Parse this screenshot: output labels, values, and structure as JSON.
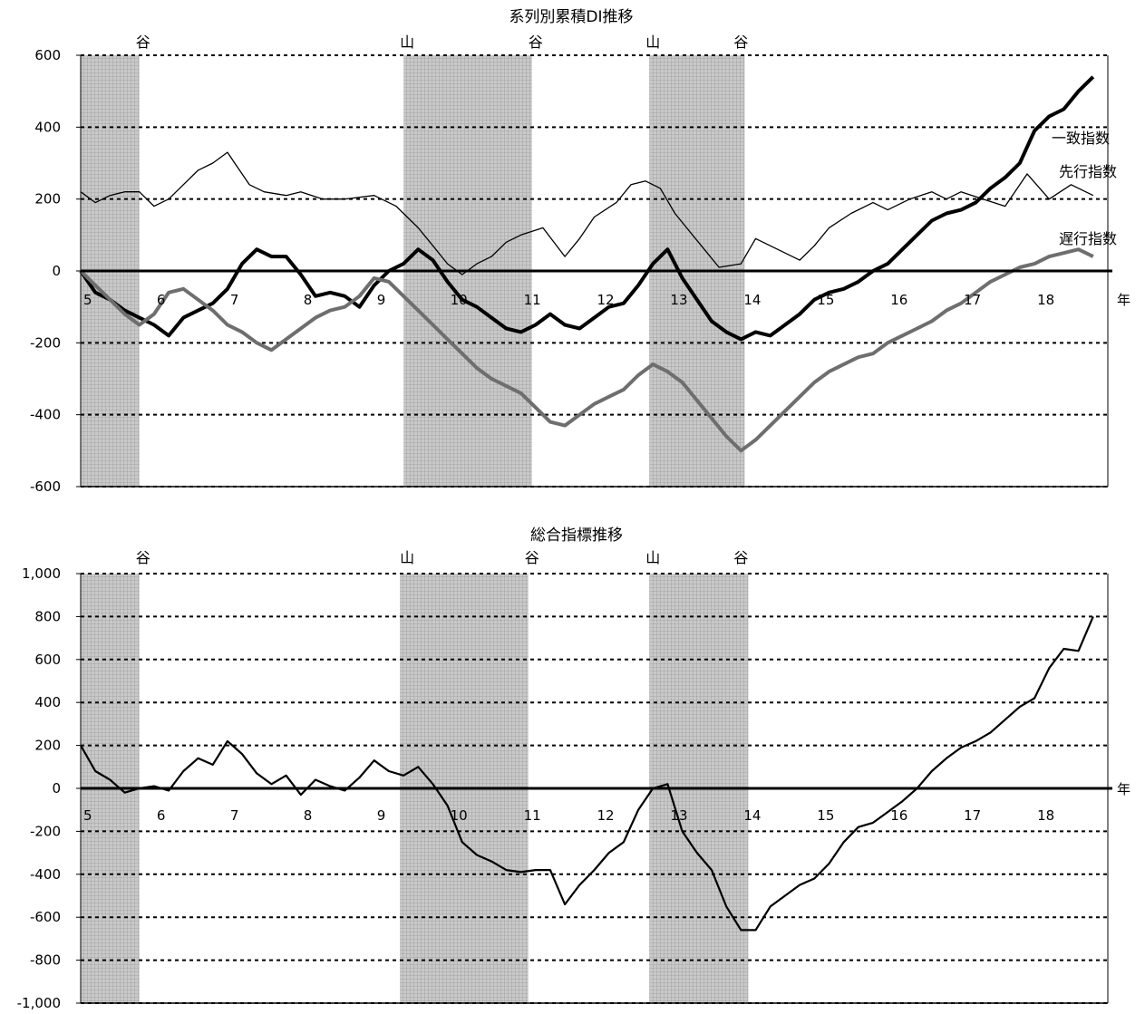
{
  "chart_data": [
    {
      "type": "line",
      "title": "系列別累積DI推移",
      "xlabel": "年",
      "ylabel": "",
      "xlim": [
        5,
        19
      ],
      "ylim": [
        -600,
        600
      ],
      "y_ticks": [
        600,
        400,
        200,
        0,
        -200,
        -400,
        -600
      ],
      "y_tick_labels": [
        "600",
        "400",
        "200",
        "0",
        "-200",
        "-400",
        "-600"
      ],
      "x_tick_labels": [
        {
          "x": 5,
          "label": "5"
        },
        {
          "x": 6,
          "label": "6"
        },
        {
          "x": 7,
          "label": "7"
        },
        {
          "x": 8,
          "label": "8"
        },
        {
          "x": 9,
          "label": "9"
        },
        {
          "x": 10,
          "label": "10"
        },
        {
          "x": 11,
          "label": "11"
        },
        {
          "x": 12,
          "label": "12"
        },
        {
          "x": 13,
          "label": "13"
        },
        {
          "x": 14,
          "label": "14"
        },
        {
          "x": 15,
          "label": "15"
        },
        {
          "x": 16,
          "label": "16"
        },
        {
          "x": 17,
          "label": "17"
        },
        {
          "x": 18,
          "label": "18"
        }
      ],
      "grid": "dashed horizontal",
      "recession_bands": [
        [
          5.0,
          5.8
        ],
        [
          9.4,
          11.15
        ],
        [
          12.75,
          14.05
        ]
      ],
      "turning_points": [
        {
          "x": 5.85,
          "label": "谷"
        },
        {
          "x": 9.45,
          "label": "山"
        },
        {
          "x": 11.2,
          "label": "谷"
        },
        {
          "x": 12.8,
          "label": "山"
        },
        {
          "x": 14.0,
          "label": "谷"
        }
      ],
      "series": [
        {
          "name": "先行指数",
          "style": "thin",
          "color": "#000000",
          "x": [
            5.0,
            5.2,
            5.4,
            5.6,
            5.8,
            6.0,
            6.2,
            6.4,
            6.6,
            6.8,
            7.0,
            7.1,
            7.3,
            7.5,
            7.8,
            8.0,
            8.3,
            8.6,
            9.0,
            9.3,
            9.6,
            9.8,
            10.0,
            10.2,
            10.4,
            10.6,
            10.8,
            11.0,
            11.3,
            11.6,
            11.8,
            12.0,
            12.3,
            12.5,
            12.7,
            12.9,
            13.1,
            13.3,
            13.5,
            13.7,
            14.0,
            14.2,
            14.5,
            14.8,
            15.0,
            15.2,
            15.5,
            15.8,
            16.0,
            16.3,
            16.6,
            16.8,
            17.0,
            17.3,
            17.6,
            17.9,
            18.2,
            18.5,
            18.8
          ],
          "y": [
            220,
            190,
            210,
            220,
            220,
            180,
            200,
            240,
            280,
            300,
            330,
            300,
            240,
            220,
            210,
            220,
            200,
            200,
            210,
            180,
            120,
            70,
            20,
            -10,
            20,
            40,
            80,
            100,
            120,
            40,
            90,
            150,
            190,
            240,
            250,
            230,
            160,
            110,
            60,
            10,
            20,
            90,
            60,
            30,
            70,
            120,
            160,
            190,
            170,
            200,
            220,
            200,
            220,
            200,
            180,
            270,
            200,
            240,
            210
          ]
        },
        {
          "name": "一致指数",
          "style": "thick",
          "color": "#000000",
          "x": [
            5.0,
            5.2,
            5.4,
            5.6,
            5.8,
            6.0,
            6.2,
            6.4,
            6.6,
            6.8,
            7.0,
            7.2,
            7.4,
            7.6,
            7.8,
            8.0,
            8.2,
            8.4,
            8.6,
            8.8,
            9.0,
            9.2,
            9.4,
            9.6,
            9.8,
            10.0,
            10.2,
            10.4,
            10.6,
            10.8,
            11.0,
            11.2,
            11.4,
            11.6,
            11.8,
            12.0,
            12.2,
            12.4,
            12.6,
            12.8,
            13.0,
            13.2,
            13.4,
            13.6,
            13.8,
            14.0,
            14.2,
            14.4,
            14.6,
            14.8,
            15.0,
            15.2,
            15.4,
            15.6,
            15.8,
            16.0,
            16.2,
            16.4,
            16.6,
            16.8,
            17.0,
            17.2,
            17.4,
            17.6,
            17.8,
            18.0,
            18.2,
            18.4,
            18.6,
            18.8
          ],
          "y": [
            0,
            -60,
            -80,
            -110,
            -130,
            -150,
            -180,
            -130,
            -110,
            -90,
            -50,
            20,
            60,
            40,
            40,
            -10,
            -70,
            -60,
            -70,
            -100,
            -40,
            0,
            20,
            60,
            30,
            -30,
            -80,
            -100,
            -130,
            -160,
            -170,
            -150,
            -120,
            -150,
            -160,
            -130,
            -100,
            -90,
            -40,
            20,
            60,
            -20,
            -80,
            -140,
            -170,
            -190,
            -170,
            -180,
            -150,
            -120,
            -80,
            -60,
            -50,
            -30,
            0,
            20,
            60,
            100,
            140,
            160,
            170,
            190,
            230,
            260,
            300,
            390,
            430,
            450,
            500,
            540
          ]
        },
        {
          "name": "遅行指数",
          "style": "gray-thick",
          "color": "#6e6e6e",
          "x": [
            5.0,
            5.2,
            5.4,
            5.6,
            5.8,
            6.0,
            6.2,
            6.4,
            6.6,
            6.8,
            7.0,
            7.2,
            7.4,
            7.6,
            7.8,
            8.0,
            8.2,
            8.4,
            8.6,
            8.8,
            9.0,
            9.2,
            9.4,
            9.6,
            9.8,
            10.0,
            10.2,
            10.4,
            10.6,
            10.8,
            11.0,
            11.2,
            11.4,
            11.6,
            11.8,
            12.0,
            12.2,
            12.4,
            12.6,
            12.8,
            13.0,
            13.2,
            13.4,
            13.6,
            13.8,
            14.0,
            14.2,
            14.4,
            14.6,
            14.8,
            15.0,
            15.2,
            15.4,
            15.6,
            15.8,
            16.0,
            16.2,
            16.4,
            16.6,
            16.8,
            17.0,
            17.2,
            17.4,
            17.6,
            17.8,
            18.0,
            18.2,
            18.4,
            18.6,
            18.8
          ],
          "y": [
            0,
            -40,
            -80,
            -120,
            -150,
            -120,
            -60,
            -50,
            -80,
            -110,
            -150,
            -170,
            -200,
            -220,
            -190,
            -160,
            -130,
            -110,
            -100,
            -70,
            -20,
            -30,
            -70,
            -110,
            -150,
            -190,
            -230,
            -270,
            -300,
            -320,
            -340,
            -380,
            -420,
            -430,
            -400,
            -370,
            -350,
            -330,
            -290,
            -260,
            -280,
            -310,
            -360,
            -410,
            -460,
            -500,
            -470,
            -430,
            -390,
            -350,
            -310,
            -280,
            -260,
            -240,
            -230,
            -200,
            -180,
            -160,
            -140,
            -110,
            -90,
            -60,
            -30,
            -10,
            10,
            20,
            40,
            50,
            60,
            40
          ]
        }
      ],
      "series_labels": [
        {
          "name": "一致指数"
        },
        {
          "name": "先行指数"
        },
        {
          "name": "遅行指数"
        }
      ]
    },
    {
      "type": "line",
      "title": "総合指標推移",
      "xlabel": "年",
      "ylabel": "",
      "xlim": [
        5,
        19
      ],
      "ylim": [
        -1000,
        1000
      ],
      "y_ticks": [
        1000,
        800,
        600,
        400,
        200,
        0,
        -200,
        -400,
        -600,
        -800,
        -1000
      ],
      "y_tick_labels": [
        "1,000",
        "800",
        "600",
        "400",
        "200",
        "0",
        "-200",
        "-400",
        "-600",
        "-800",
        "-1,000"
      ],
      "x_tick_labels": [
        {
          "x": 5,
          "label": "5"
        },
        {
          "x": 6,
          "label": "6"
        },
        {
          "x": 7,
          "label": "7"
        },
        {
          "x": 8,
          "label": "8"
        },
        {
          "x": 9,
          "label": "9"
        },
        {
          "x": 10,
          "label": "10"
        },
        {
          "x": 11,
          "label": "11"
        },
        {
          "x": 12,
          "label": "12"
        },
        {
          "x": 13,
          "label": "13"
        },
        {
          "x": 14,
          "label": "14"
        },
        {
          "x": 15,
          "label": "15"
        },
        {
          "x": 16,
          "label": "16"
        },
        {
          "x": 17,
          "label": "17"
        },
        {
          "x": 18,
          "label": "18"
        }
      ],
      "grid": "dashed horizontal",
      "recession_bands": [
        [
          5.0,
          5.8
        ],
        [
          9.35,
          11.1
        ],
        [
          12.75,
          14.1
        ]
      ],
      "turning_points": [
        {
          "x": 5.85,
          "label": "谷"
        },
        {
          "x": 9.45,
          "label": "山"
        },
        {
          "x": 11.15,
          "label": "谷"
        },
        {
          "x": 12.8,
          "label": "山"
        },
        {
          "x": 14.0,
          "label": "谷"
        }
      ],
      "series": [
        {
          "name": "",
          "style": "medium",
          "color": "#000000",
          "x": [
            5.0,
            5.2,
            5.4,
            5.6,
            5.8,
            6.0,
            6.2,
            6.4,
            6.6,
            6.8,
            7.0,
            7.2,
            7.4,
            7.6,
            7.8,
            8.0,
            8.2,
            8.4,
            8.6,
            8.8,
            9.0,
            9.2,
            9.4,
            9.6,
            9.8,
            10.0,
            10.2,
            10.4,
            10.6,
            10.8,
            11.0,
            11.2,
            11.4,
            11.6,
            11.8,
            12.0,
            12.2,
            12.4,
            12.6,
            12.8,
            13.0,
            13.2,
            13.4,
            13.6,
            13.8,
            14.0,
            14.2,
            14.4,
            14.6,
            14.8,
            15.0,
            15.2,
            15.4,
            15.6,
            15.8,
            16.0,
            16.2,
            16.4,
            16.6,
            16.8,
            17.0,
            17.2,
            17.4,
            17.6,
            17.8,
            18.0,
            18.2,
            18.4,
            18.6,
            18.8
          ],
          "y": [
            200,
            80,
            40,
            -20,
            0,
            10,
            -10,
            80,
            140,
            110,
            220,
            160,
            70,
            20,
            60,
            -30,
            40,
            10,
            -10,
            50,
            130,
            80,
            60,
            100,
            20,
            -80,
            -250,
            -310,
            -340,
            -380,
            -390,
            -380,
            -380,
            -540,
            -450,
            -380,
            -300,
            -250,
            -100,
            0,
            20,
            -200,
            -300,
            -380,
            -550,
            -660,
            -660,
            -550,
            -500,
            -450,
            -420,
            -350,
            -250,
            -180,
            -160,
            -110,
            -60,
            0,
            80,
            140,
            190,
            220,
            260,
            320,
            380,
            420,
            560,
            650,
            640,
            800
          ]
        }
      ]
    }
  ]
}
